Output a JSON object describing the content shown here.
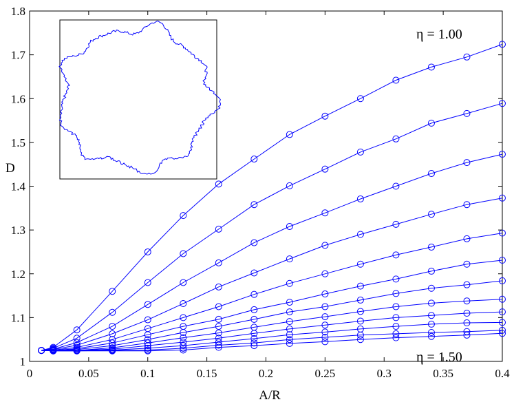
{
  "chart_data": {
    "type": "line",
    "title": "",
    "xlabel": "A/R",
    "ylabel": "D",
    "xlim": [
      0,
      0.4
    ],
    "ylim": [
      1,
      1.8
    ],
    "xticks": [
      0,
      0.05,
      0.1,
      0.15,
      0.2,
      0.25,
      0.3,
      0.35,
      0.4
    ],
    "xtick_labels": [
      "0",
      "0.05",
      "0.1",
      "0.15",
      "0.2",
      "0.25",
      "0.3",
      "0.35",
      "0.4"
    ],
    "yticks": [
      1,
      1.1,
      1.2,
      1.3,
      1.4,
      1.5,
      1.6,
      1.7,
      1.8
    ],
    "ytick_labels": [
      "1",
      "1.1",
      "1.2",
      "1.3",
      "1.4",
      "1.5",
      "1.6",
      "1.7",
      "1.8"
    ],
    "grid": false,
    "legend": "none",
    "marker": "circle",
    "line_color": "#0000ff",
    "x": [
      0.01,
      0.02,
      0.04,
      0.07,
      0.1,
      0.13,
      0.16,
      0.19,
      0.22,
      0.25,
      0.28,
      0.31,
      0.34,
      0.37,
      0.4
    ],
    "series": [
      {
        "values": [
          1.025,
          1.032,
          1.072,
          1.16,
          1.25,
          1.333,
          1.405,
          1.462,
          1.518,
          1.56,
          1.6,
          1.642,
          1.672,
          1.695,
          1.724
        ]
      },
      {
        "values": [
          1.025,
          1.03,
          1.053,
          1.112,
          1.18,
          1.246,
          1.302,
          1.358,
          1.401,
          1.439,
          1.478,
          1.508,
          1.544,
          1.566,
          1.589
        ]
      },
      {
        "values": [
          1.025,
          1.028,
          1.043,
          1.08,
          1.13,
          1.18,
          1.225,
          1.271,
          1.308,
          1.339,
          1.371,
          1.4,
          1.429,
          1.454,
          1.473
        ]
      },
      {
        "values": [
          1.025,
          1.027,
          1.037,
          1.063,
          1.095,
          1.132,
          1.17,
          1.202,
          1.234,
          1.265,
          1.29,
          1.313,
          1.336,
          1.358,
          1.373
        ]
      },
      {
        "values": [
          1.025,
          1.026,
          1.032,
          1.05,
          1.075,
          1.1,
          1.125,
          1.153,
          1.178,
          1.2,
          1.222,
          1.243,
          1.261,
          1.28,
          1.293
        ]
      },
      {
        "values": [
          1.025,
          1.025,
          1.029,
          1.042,
          1.061,
          1.08,
          1.096,
          1.118,
          1.135,
          1.154,
          1.172,
          1.188,
          1.206,
          1.222,
          1.231
        ]
      },
      {
        "values": [
          1.025,
          1.025,
          1.027,
          1.036,
          1.05,
          1.066,
          1.08,
          1.096,
          1.113,
          1.125,
          1.14,
          1.155,
          1.167,
          1.175,
          1.184
        ]
      },
      {
        "values": [
          1.025,
          1.025,
          1.025,
          1.031,
          1.042,
          1.054,
          1.065,
          1.078,
          1.091,
          1.102,
          1.114,
          1.125,
          1.133,
          1.138,
          1.142
        ]
      },
      {
        "values": [
          1.025,
          1.025,
          1.025,
          1.028,
          1.036,
          1.044,
          1.053,
          1.064,
          1.074,
          1.083,
          1.092,
          1.1,
          1.105,
          1.11,
          1.113
        ]
      },
      {
        "values": [
          1.025,
          1.025,
          1.025,
          1.026,
          1.03,
          1.036,
          1.044,
          1.052,
          1.061,
          1.067,
          1.074,
          1.08,
          1.085,
          1.088,
          1.089
        ]
      },
      {
        "values": [
          1.025,
          1.024,
          1.024,
          1.025,
          1.026,
          1.03,
          1.037,
          1.042,
          1.05,
          1.055,
          1.06,
          1.063,
          1.066,
          1.068,
          1.071
        ]
      },
      {
        "values": [
          1.025,
          1.024,
          1.024,
          1.024,
          1.024,
          1.026,
          1.032,
          1.036,
          1.041,
          1.045,
          1.05,
          1.054,
          1.057,
          1.06,
          1.064
        ]
      }
    ],
    "annotations": [
      {
        "text": "η = 1.00",
        "position": "top-right"
      },
      {
        "text": "η = 1.50",
        "position": "bottom-right"
      }
    ],
    "inset": {
      "content": "irregular closed boundary curve",
      "position": "top-left"
    }
  }
}
